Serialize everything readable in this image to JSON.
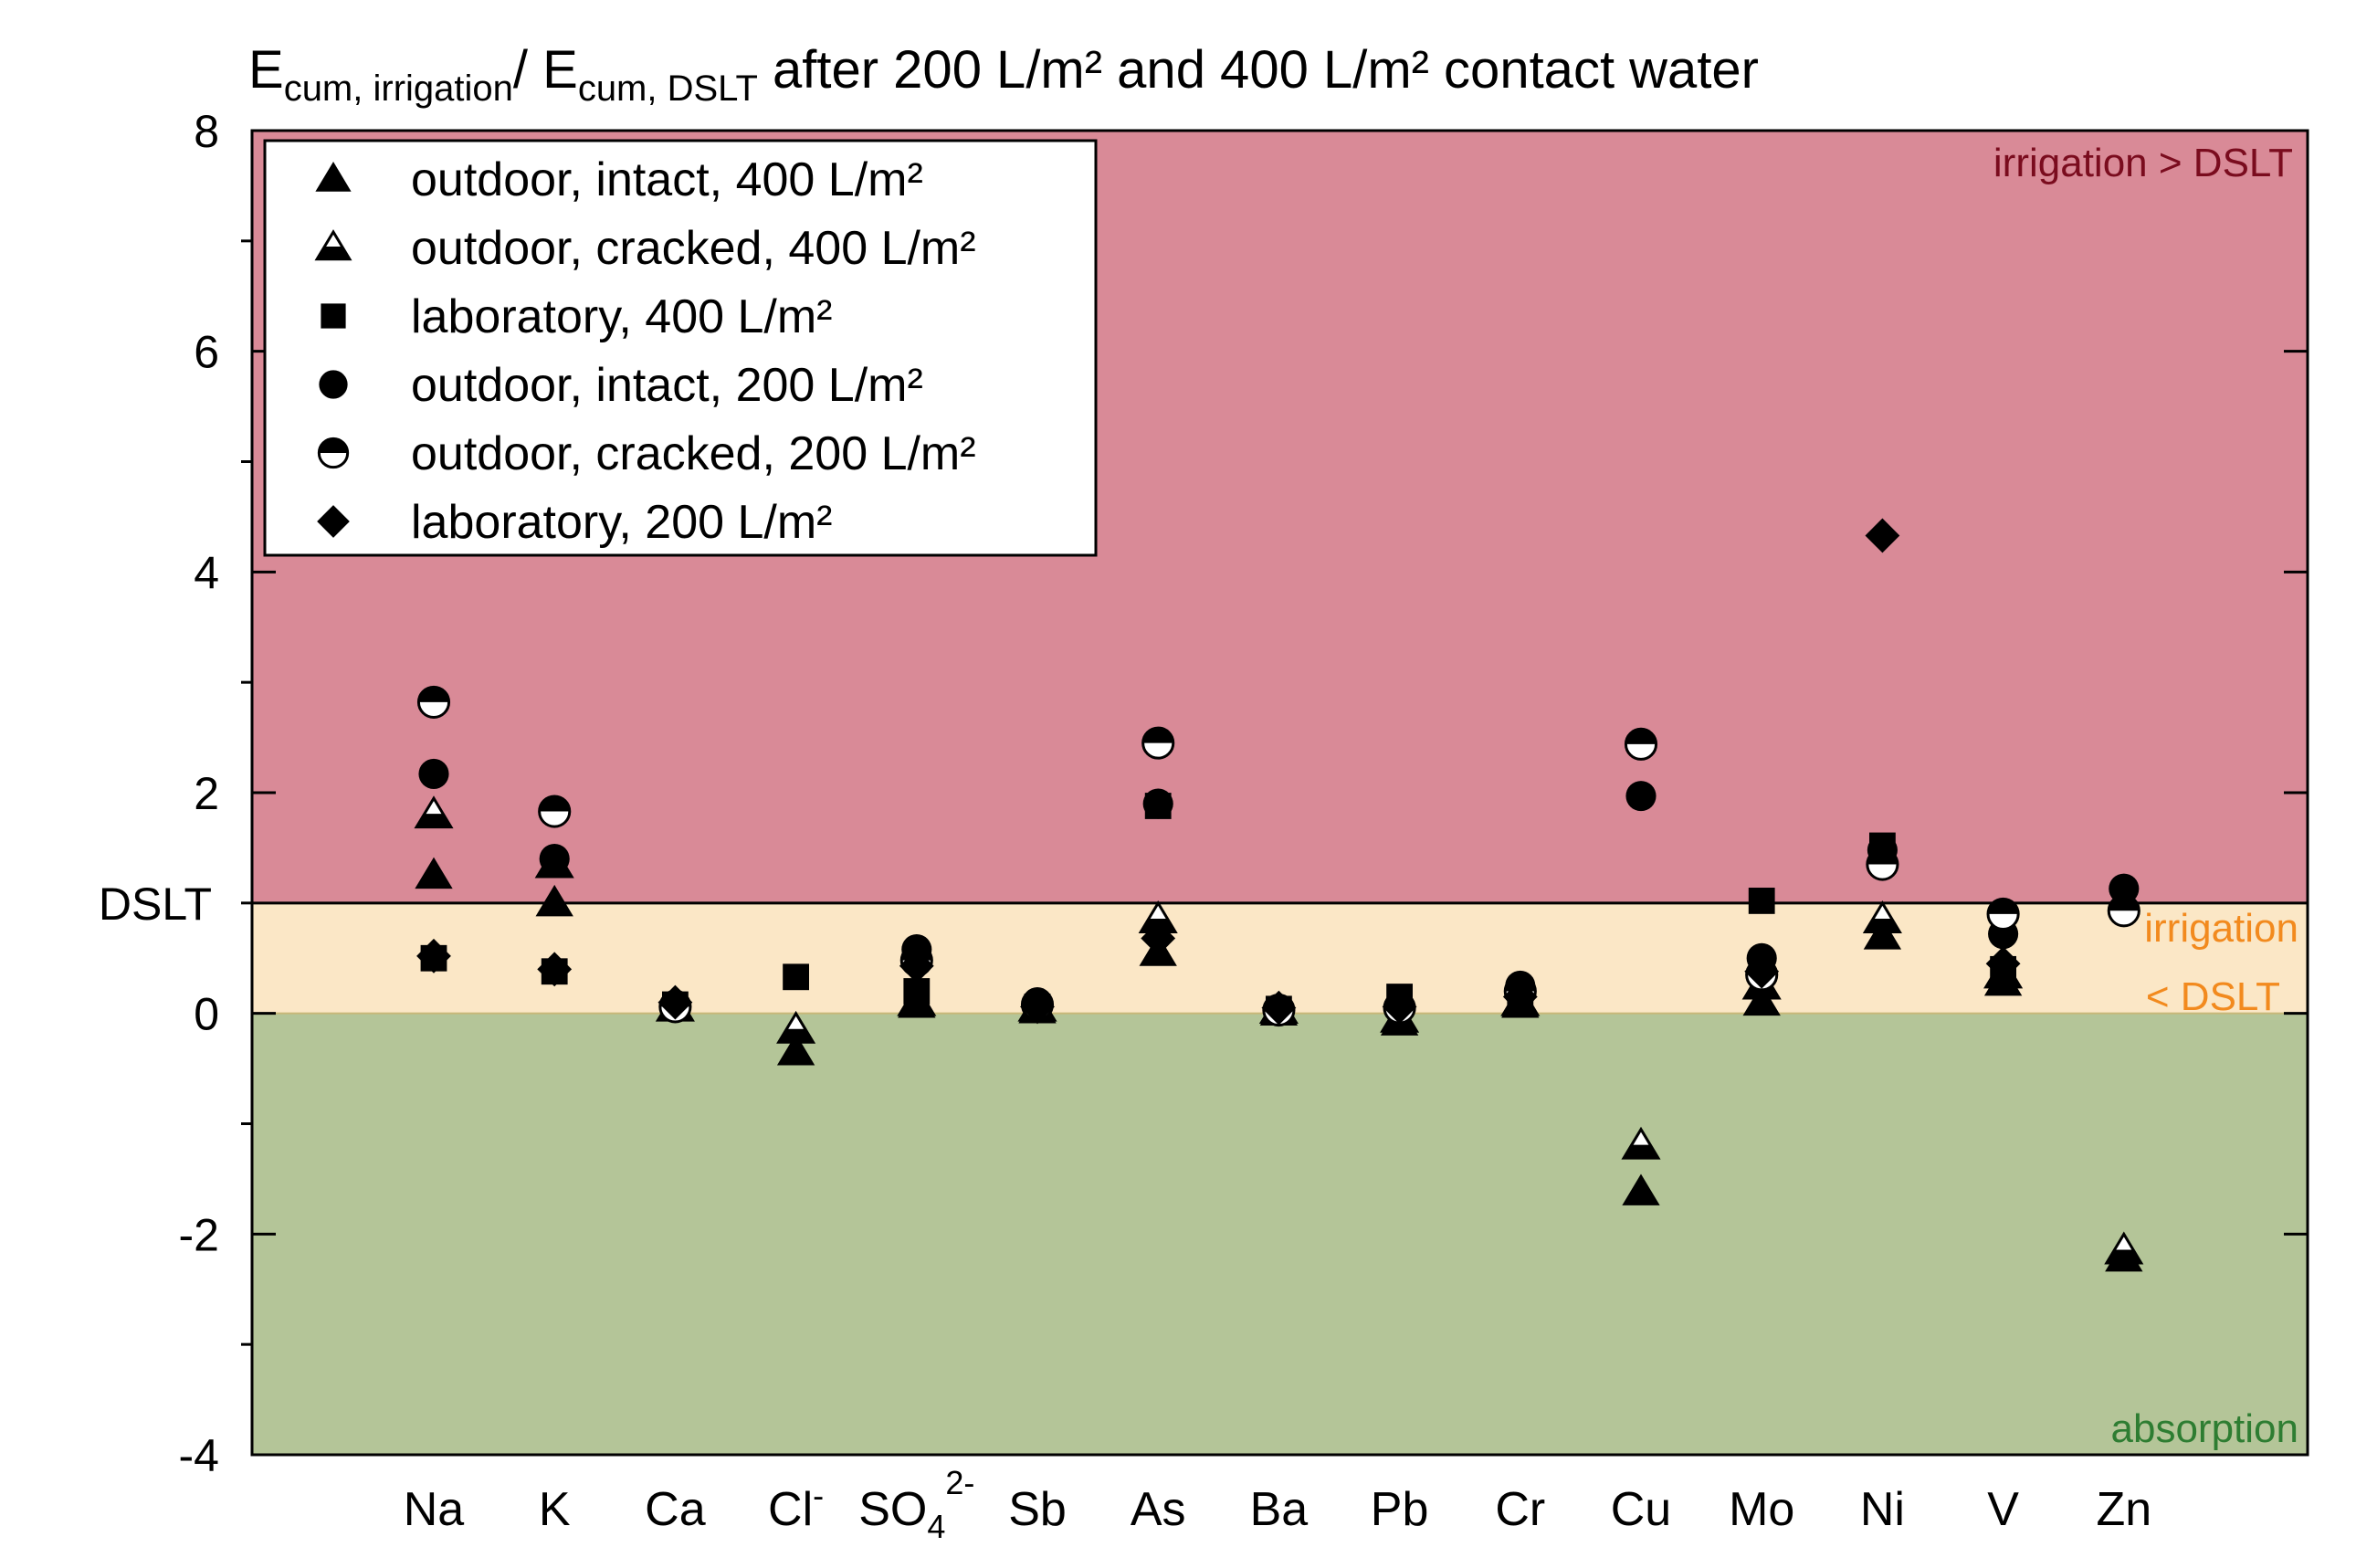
{
  "chart_data": {
    "type": "scatter",
    "title": {
      "parts": [
        {
          "text": "E",
          "sub": false
        },
        {
          "text": "cum, irrigation",
          "sub": true
        },
        {
          "text": "/ E",
          "sub": false
        },
        {
          "text": "cum, DSLT",
          "sub": true
        },
        {
          "text": " after 200 L/m² and 400 L/m² contact water",
          "sub": false
        }
      ]
    },
    "xlabel": "",
    "ylabel": "",
    "ylim": [
      -4,
      8
    ],
    "yticks": [
      -4,
      -2,
      0,
      2,
      4,
      6,
      8
    ],
    "ytick_labels": [
      "-4",
      "-2",
      "0",
      "2",
      "4",
      "6",
      "8"
    ],
    "ytick_minor": [
      -3,
      -1,
      1,
      3,
      5,
      7
    ],
    "dslt_line": {
      "value": 1,
      "label": "DSLT"
    },
    "regions": [
      {
        "name": "irrigation-greater",
        "from": 1,
        "to": 8,
        "color": "#d98a97",
        "labels": [
          "irrigation > DSLT"
        ],
        "label_color": "#7a0c1e",
        "label_pos": "top-right"
      },
      {
        "name": "irrigation-less",
        "from": 0,
        "to": 1,
        "color": "#fbe7c6",
        "labels": [
          "irrigation",
          "< DSLT"
        ],
        "label_color": "#f28a1e",
        "label_pos": "right"
      },
      {
        "name": "absorption",
        "from": -4,
        "to": 0,
        "color": "#b4c598",
        "labels": [
          "absorption"
        ],
        "label_color": "#2e7d32",
        "label_pos": "bottom-right"
      }
    ],
    "categories": [
      {
        "label": "Na"
      },
      {
        "label": "K"
      },
      {
        "label": "Ca"
      },
      {
        "label": "Cl",
        "sup": "-"
      },
      {
        "label": "SO",
        "sub": "4",
        "sup": "2-"
      },
      {
        "label": "Sb"
      },
      {
        "label": "As"
      },
      {
        "label": "Ba"
      },
      {
        "label": "Pb"
      },
      {
        "label": "Cr"
      },
      {
        "label": "Cu"
      },
      {
        "label": "Mo"
      },
      {
        "label": "Ni"
      },
      {
        "label": "V"
      },
      {
        "label": "Zn"
      }
    ],
    "series": [
      {
        "name": "outdoor, intact, 400 L/m²",
        "marker": "triangle-filled",
        "values": [
          1.25,
          1.0,
          0.05,
          -0.35,
          0.08,
          0.03,
          0.55,
          0.01,
          -0.08,
          0.08,
          -1.62,
          0.1,
          0.7,
          0.28,
          -2.22
        ]
      },
      {
        "name": "outdoor, cracked, 400 L/m²",
        "marker": "triangle-half",
        "values": [
          1.8,
          1.35,
          0.05,
          -0.15,
          0.1,
          0.05,
          0.85,
          0.03,
          -0.05,
          0.1,
          -1.2,
          0.25,
          0.85,
          0.35,
          -2.15
        ]
      },
      {
        "name": "laboratory, 400 L/m²",
        "marker": "square",
        "values": [
          0.5,
          0.38,
          0.08,
          0.33,
          0.2,
          0.06,
          1.88,
          0.04,
          0.15,
          0.15,
          null,
          1.02,
          1.52,
          0.4,
          null
        ]
      },
      {
        "name": "outdoor, intact, 200 L/m²",
        "marker": "circle-filled",
        "values": [
          2.17,
          1.4,
          0.08,
          null,
          0.58,
          0.1,
          1.9,
          0.04,
          0.07,
          0.25,
          1.97,
          0.5,
          1.48,
          0.72,
          1.13
        ]
      },
      {
        "name": "outdoor, cracked, 200 L/m²",
        "marker": "circle-half",
        "values": [
          2.82,
          1.83,
          0.06,
          null,
          0.48,
          0.08,
          2.45,
          0.03,
          0.05,
          0.2,
          2.44,
          0.35,
          1.35,
          0.9,
          0.93
        ]
      },
      {
        "name": "laboratory, 200 L/m²",
        "marker": "diamond",
        "values": [
          0.52,
          0.4,
          0.1,
          null,
          0.43,
          0.06,
          0.68,
          0.05,
          0.06,
          0.15,
          null,
          0.38,
          4.33,
          0.45,
          null
        ]
      }
    ],
    "legend": {
      "position": "top-left"
    },
    "grid": false
  }
}
